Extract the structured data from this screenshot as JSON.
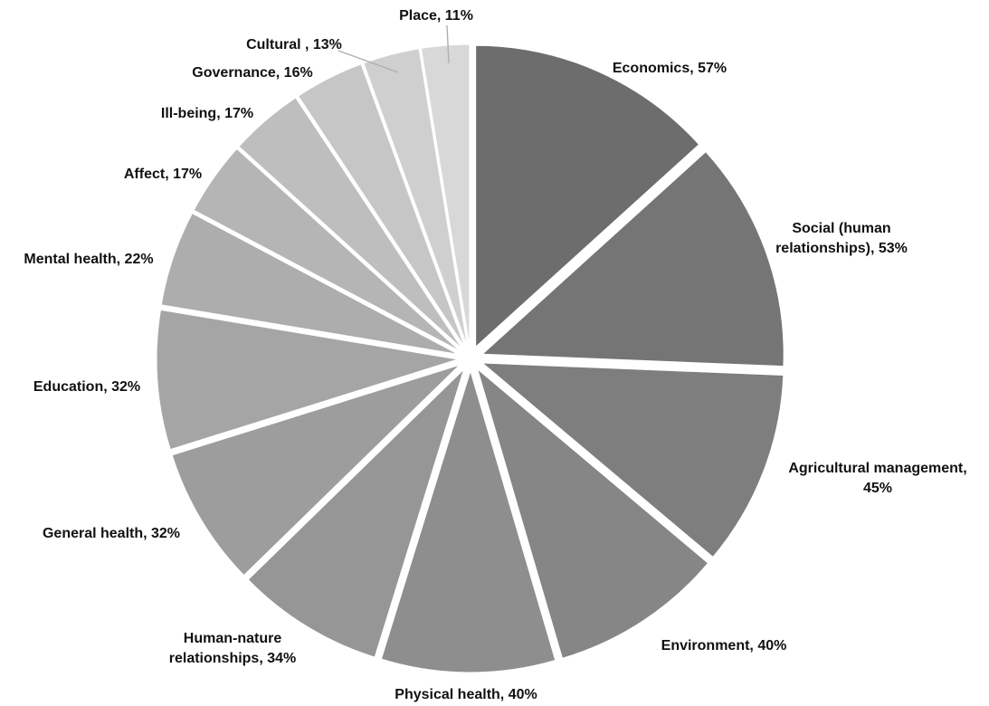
{
  "chart_data": {
    "type": "pie",
    "exploded": true,
    "labels_outside": true,
    "slices": [
      {
        "name": "Economics",
        "value": 57,
        "label": "Economics, 57%",
        "color": "#6d6d6d"
      },
      {
        "name": "Social (human relationships)",
        "value": 53,
        "label_lines": [
          "Social (human",
          "relationships), 53%"
        ],
        "color": "#757575"
      },
      {
        "name": "Agricultural management",
        "value": 45,
        "label_lines": [
          "Agricultural management,",
          "45%"
        ],
        "color": "#7e7e7e"
      },
      {
        "name": "Environment",
        "value": 40,
        "label": "Environment, 40%",
        "color": "#868686"
      },
      {
        "name": "Physical health",
        "value": 40,
        "label": "Physical health, 40%",
        "color": "#8e8e8e"
      },
      {
        "name": "Human-nature relationships",
        "value": 34,
        "label_lines": [
          "Human-nature",
          "relationships, 34%"
        ],
        "color": "#969696"
      },
      {
        "name": "General health",
        "value": 32,
        "label": "General health, 32%",
        "color": "#9d9d9d"
      },
      {
        "name": "Education",
        "value": 32,
        "label": "Education, 32%",
        "color": "#a5a5a5"
      },
      {
        "name": "Mental health",
        "value": 22,
        "label": "Mental health, 22%",
        "color": "#adadad"
      },
      {
        "name": "Affect",
        "value": 17,
        "label": "Affect, 17%",
        "color": "#b5b5b5"
      },
      {
        "name": "Ill-being",
        "value": 17,
        "label": "Ill-being, 17%",
        "color": "#bebebe"
      },
      {
        "name": "Governance",
        "value": 16,
        "label": "Governance, 16%",
        "color": "#c6c6c6"
      },
      {
        "name": "Cultural",
        "value": 13,
        "label": "Cultural , 13%",
        "color": "#cfcfcf"
      },
      {
        "name": "Place",
        "value": 11,
        "label": "Place, 11%",
        "color": "#d8d8d8"
      }
    ]
  }
}
